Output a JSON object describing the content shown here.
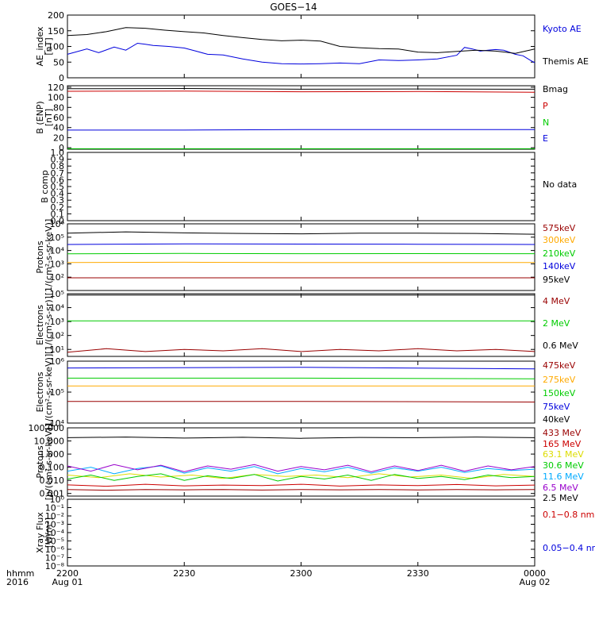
{
  "title": "GOES−14",
  "colors": {
    "black": "#000000",
    "blue": "#0000dd",
    "red": "#cc0000",
    "green": "#00cc00",
    "orange": "#ffaa00",
    "yellow": "#dddd00",
    "cyan": "#00aaff",
    "purple": "#9900cc",
    "maroon": "#990000"
  },
  "time_axis": {
    "corner_labels": [
      "hhmm",
      "2016"
    ],
    "ticks": [
      {
        "hhmm": "2200",
        "date": "Aug 01",
        "minute": 0
      },
      {
        "hhmm": "2230",
        "date": "",
        "minute": 30
      },
      {
        "hhmm": "2300",
        "date": "",
        "minute": 60
      },
      {
        "hhmm": "2330",
        "date": "",
        "minute": 90
      },
      {
        "hhmm": "0000",
        "date": "Aug 02",
        "minute": 120
      }
    ],
    "range_minutes": [
      0,
      120
    ]
  },
  "chart_data": [
    {
      "type": "line",
      "id": "ae",
      "ylabel": [
        "AE_index",
        "[nT]"
      ],
      "yscale": "linear",
      "ylim": [
        0,
        200
      ],
      "ticks": [
        {
          "v": 0,
          "l": "0"
        },
        {
          "v": 50,
          "l": "50"
        },
        {
          "v": 100,
          "l": "100"
        },
        {
          "v": 150,
          "l": "150"
        },
        {
          "v": 200,
          "l": "200"
        }
      ],
      "series": [
        {
          "name": "Kyoto AE",
          "color": "#0000dd",
          "x": [
            0,
            5,
            8,
            12,
            15,
            18,
            20,
            22,
            26,
            30,
            33,
            36,
            40,
            45,
            50,
            55,
            60,
            65,
            70,
            75,
            80,
            85,
            90,
            95,
            100,
            102,
            104,
            106,
            108,
            110,
            112,
            115,
            117,
            119,
            120
          ],
          "y": [
            75,
            92,
            80,
            98,
            88,
            110,
            107,
            103,
            100,
            95,
            85,
            75,
            73,
            60,
            50,
            45,
            44,
            45,
            47,
            45,
            57,
            55,
            57,
            60,
            72,
            97,
            92,
            85,
            88,
            90,
            88,
            75,
            70,
            55,
            48
          ]
        },
        {
          "name": "Themis AE",
          "color": "#000000",
          "x": [
            0,
            5,
            10,
            15,
            20,
            25,
            30,
            35,
            40,
            45,
            50,
            55,
            60,
            65,
            70,
            75,
            80,
            85,
            90,
            95,
            100,
            105,
            110,
            115,
            120
          ],
          "y": [
            135,
            138,
            147,
            160,
            158,
            152,
            147,
            143,
            135,
            128,
            122,
            118,
            120,
            117,
            100,
            96,
            93,
            92,
            82,
            80,
            84,
            88,
            85,
            78,
            92
          ]
        }
      ]
    },
    {
      "type": "line",
      "id": "b_enp",
      "ylabel": [
        "B (ENP)",
        "[nT]"
      ],
      "yscale": "linear",
      "ylim": [
        -3,
        123
      ],
      "ticks": [
        {
          "v": 0,
          "l": "0"
        },
        {
          "v": 20,
          "l": "20"
        },
        {
          "v": 40,
          "l": "40"
        },
        {
          "v": 60,
          "l": "60"
        },
        {
          "v": 80,
          "l": "80"
        },
        {
          "v": 100,
          "l": "100"
        },
        {
          "v": 120,
          "l": "120"
        }
      ],
      "series": [
        {
          "name": "Bmag",
          "color": "#000000",
          "x": [
            0,
            30,
            60,
            90,
            120
          ],
          "y": [
            117,
            117.5,
            116,
            116.5,
            116
          ]
        },
        {
          "name": "P",
          "color": "#cc0000",
          "x": [
            0,
            30,
            60,
            90,
            120
          ],
          "y": [
            112,
            112.5,
            111,
            111.5,
            110
          ]
        },
        {
          "name": "N",
          "color": "#00cc00",
          "x": [
            0,
            30,
            60,
            90,
            120
          ],
          "y": [
            -2,
            -2,
            -2,
            -2,
            -2
          ]
        },
        {
          "name": "E",
          "color": "#0000dd",
          "x": [
            0,
            30,
            60,
            90,
            120
          ],
          "y": [
            35,
            35,
            36,
            36,
            36
          ]
        }
      ]
    },
    {
      "type": "line",
      "id": "b_comp",
      "ylabel": [
        "B comp"
      ],
      "yscale": "linear",
      "ylim": [
        0,
        1
      ],
      "ticks": [
        {
          "v": 0,
          "l": "0.0"
        },
        {
          "v": 0.1,
          "l": "0.1"
        },
        {
          "v": 0.2,
          "l": "0.2"
        },
        {
          "v": 0.3,
          "l": "0.3"
        },
        {
          "v": 0.4,
          "l": "0.4"
        },
        {
          "v": 0.5,
          "l": "0.5"
        },
        {
          "v": 0.6,
          "l": "0.6"
        },
        {
          "v": 0.7,
          "l": "0.7"
        },
        {
          "v": 0.8,
          "l": "0.8"
        },
        {
          "v": 0.9,
          "l": "0.9"
        },
        {
          "v": 1,
          "l": "1.0"
        }
      ],
      "series": [
        {
          "name": "No data",
          "color": "#000000",
          "x": [],
          "y": []
        }
      ]
    },
    {
      "type": "line",
      "id": "protons_mag",
      "ylabel": [
        "Protons",
        "[1/(cm²-s-sr-keV)]"
      ],
      "yscale": "log",
      "ylim": [
        1,
        6
      ],
      "ticks": [
        {
          "v": 2,
          "l": "10²"
        },
        {
          "v": 3,
          "l": "10³"
        },
        {
          "v": 4,
          "l": "10⁴"
        },
        {
          "v": 5,
          "l": "10⁵"
        },
        {
          "v": 6,
          "l": "10⁶"
        }
      ],
      "series": [
        {
          "name": "575keV",
          "color": "#990000",
          "x": [
            0,
            30,
            60,
            90,
            120
          ],
          "y": [
            1.95,
            1.95,
            1.95,
            1.95,
            1.95
          ]
        },
        {
          "name": "300keV",
          "color": "#ffaa00",
          "x": [
            0,
            30,
            60,
            90,
            120
          ],
          "y": [
            3.1,
            3.12,
            3.1,
            3.1,
            3.1
          ]
        },
        {
          "name": "210keV",
          "color": "#00cc00",
          "x": [
            0,
            30,
            60,
            90,
            120
          ],
          "y": [
            3.75,
            3.78,
            3.76,
            3.77,
            3.76
          ]
        },
        {
          "name": "140keV",
          "color": "#0000dd",
          "x": [
            0,
            30,
            60,
            90,
            120
          ],
          "y": [
            4.45,
            4.5,
            4.48,
            4.47,
            4.45
          ]
        },
        {
          "name": "95keV",
          "color": "#000000",
          "x": [
            0,
            15,
            30,
            45,
            60,
            75,
            90,
            105,
            120
          ],
          "y": [
            5.3,
            5.4,
            5.32,
            5.28,
            5.25,
            5.3,
            5.3,
            5.28,
            5.22
          ]
        }
      ]
    },
    {
      "type": "line",
      "id": "electrons_mag",
      "ylabel": [
        "Electrons",
        "[1/(cm²-s-sr)]"
      ],
      "yscale": "log",
      "ylim": [
        0.5,
        5
      ],
      "ticks": [
        {
          "v": 1,
          "l": "10¹"
        },
        {
          "v": 2,
          "l": "10²"
        },
        {
          "v": 3,
          "l": "10³"
        },
        {
          "v": 4,
          "l": "10⁴"
        },
        {
          "v": 5,
          "l": "10⁵"
        }
      ],
      "series": [
        {
          "name": "4 MeV",
          "color": "#990000",
          "x": [
            0,
            10,
            20,
            30,
            40,
            50,
            60,
            70,
            80,
            90,
            100,
            110,
            120
          ],
          "y": [
            0.8,
            1.05,
            0.85,
            1.0,
            0.9,
            1.05,
            0.85,
            1.0,
            0.9,
            1.05,
            0.9,
            1.0,
            0.85
          ]
        },
        {
          "name": "2 MeV",
          "color": "#00cc00",
          "x": [
            0,
            30,
            60,
            90,
            120
          ],
          "y": [
            3.05,
            3.05,
            3.05,
            3.05,
            3.05
          ]
        },
        {
          "name": "0.6 MeV",
          "color": "#000000",
          "x": [
            0,
            30,
            60,
            90,
            120
          ],
          "y": [
            4.9,
            4.9,
            4.9,
            4.9,
            4.9
          ]
        }
      ]
    },
    {
      "type": "line",
      "id": "electrons_maged",
      "ylabel": [
        "Electrons",
        "[1/(cm²-s-sr-keV)]"
      ],
      "yscale": "log",
      "ylim": [
        4,
        6
      ],
      "ticks": [
        {
          "v": 4,
          "l": "10⁴"
        },
        {
          "v": 5,
          "l": "10⁵"
        },
        {
          "v": 6,
          "l": "10⁶"
        }
      ],
      "series": [
        {
          "name": "475keV",
          "color": "#990000",
          "x": [
            0,
            60,
            120
          ],
          "y": [
            4.7,
            4.7,
            4.68
          ]
        },
        {
          "name": "275keV",
          "color": "#ffaa00",
          "x": [
            0,
            60,
            120
          ],
          "y": [
            5.2,
            5.2,
            5.2
          ]
        },
        {
          "name": "150keV",
          "color": "#00cc00",
          "x": [
            0,
            60,
            120
          ],
          "y": [
            5.45,
            5.45,
            5.43
          ]
        },
        {
          "name": "75keV",
          "color": "#0000dd",
          "x": [
            0,
            60,
            120
          ],
          "y": [
            5.78,
            5.8,
            5.75
          ]
        },
        {
          "name": "40keV",
          "color": "#000000",
          "x": [
            0,
            60,
            120
          ],
          "y": [
            6.0,
            6.0,
            6.0
          ]
        }
      ]
    },
    {
      "type": "line",
      "id": "protons_hepad",
      "ylabel": [
        "Protons",
        "[p/(cm²-s-sr-keV)]"
      ],
      "yscale": "log",
      "ylim": [
        -3.2,
        2
      ],
      "ticks": [
        {
          "v": -3,
          "l": "0.001"
        },
        {
          "v": -2,
          "l": "0.010"
        },
        {
          "v": -1,
          "l": "0.100"
        },
        {
          "v": 0,
          "l": "1.000"
        },
        {
          "v": 1,
          "l": "10.000"
        },
        {
          "v": 2,
          "l": "100.000"
        }
      ],
      "series": [
        {
          "name": "433 MeV",
          "color": "#990000",
          "x": [
            0,
            10,
            20,
            30,
            40,
            50,
            60,
            70,
            80,
            90,
            100,
            110,
            120
          ],
          "y": [
            -2.7,
            -2.75,
            -2.7,
            -2.72,
            -2.7,
            -2.74,
            -2.7,
            -2.72,
            -2.7,
            -2.73,
            -2.7,
            -2.72,
            -2.7
          ]
        },
        {
          "name": "165 MeV",
          "color": "#cc0000",
          "x": [
            0,
            10,
            20,
            30,
            40,
            50,
            60,
            70,
            80,
            90,
            100,
            110,
            120
          ],
          "y": [
            -2.35,
            -2.45,
            -2.3,
            -2.42,
            -2.36,
            -2.4,
            -2.3,
            -2.44,
            -2.35,
            -2.4,
            -2.32,
            -2.42,
            -2.36
          ]
        },
        {
          "name": "63.1 MeV",
          "color": "#dddd00",
          "x": [
            0,
            8,
            16,
            24,
            32,
            40,
            48,
            56,
            64,
            72,
            80,
            88,
            96,
            104,
            112,
            120
          ],
          "y": [
            -1.6,
            -1.8,
            -1.5,
            -1.75,
            -1.6,
            -1.85,
            -1.55,
            -1.7,
            -1.6,
            -1.8,
            -1.5,
            -1.75,
            -1.6,
            -1.85,
            -1.55,
            -1.7
          ]
        },
        {
          "name": "30.6 MeV",
          "color": "#00cc00",
          "x": [
            0,
            6,
            12,
            18,
            24,
            30,
            36,
            42,
            48,
            54,
            60,
            66,
            72,
            78,
            84,
            90,
            96,
            102,
            108,
            114,
            120
          ],
          "y": [
            -1.9,
            -1.6,
            -2.0,
            -1.7,
            -1.5,
            -2.0,
            -1.65,
            -1.85,
            -1.55,
            -2.05,
            -1.7,
            -1.9,
            -1.6,
            -2.0,
            -1.55,
            -1.85,
            -1.7,
            -1.95,
            -1.6,
            -1.8,
            -1.7
          ]
        },
        {
          "name": "11.6 MeV",
          "color": "#00aaff",
          "x": [
            0,
            6,
            12,
            18,
            24,
            30,
            36,
            42,
            48,
            54,
            60,
            66,
            72,
            78,
            84,
            90,
            96,
            102,
            108,
            114,
            120
          ],
          "y": [
            -1.3,
            -1.0,
            -1.5,
            -1.1,
            -0.9,
            -1.45,
            -1.05,
            -1.3,
            -0.95,
            -1.5,
            -1.1,
            -1.35,
            -1.0,
            -1.45,
            -1.05,
            -1.3,
            -1.0,
            -1.4,
            -1.1,
            -1.25,
            -1.15
          ]
        },
        {
          "name": "6.5 MeV",
          "color": "#9900cc",
          "x": [
            0,
            6,
            12,
            18,
            24,
            30,
            36,
            42,
            48,
            54,
            60,
            66,
            72,
            78,
            84,
            90,
            96,
            102,
            108,
            114,
            120
          ],
          "y": [
            -0.9,
            -1.3,
            -0.8,
            -1.2,
            -0.85,
            -1.35,
            -0.9,
            -1.15,
            -0.8,
            -1.3,
            -0.95,
            -1.2,
            -0.85,
            -1.35,
            -0.9,
            -1.25,
            -0.85,
            -1.3,
            -0.9,
            -1.2,
            -0.95
          ]
        },
        {
          "name": "2.5 MeV",
          "color": "#000000",
          "x": [
            0,
            15,
            30,
            45,
            60,
            75,
            90,
            105,
            120
          ],
          "y": [
            1.25,
            1.3,
            1.22,
            1.28,
            1.2,
            1.27,
            1.25,
            1.3,
            1.25
          ]
        }
      ]
    },
    {
      "type": "line",
      "id": "xray",
      "ylabel": [
        "Xray Flux",
        "[W/m²]"
      ],
      "yscale": "log",
      "ylim": [
        -8,
        0
      ],
      "ticks": [
        {
          "v": -8,
          "l": "10⁻⁸"
        },
        {
          "v": -7,
          "l": "10⁻⁷"
        },
        {
          "v": -6,
          "l": "10⁻⁶"
        },
        {
          "v": -5,
          "l": "10⁻⁵"
        },
        {
          "v": -4,
          "l": "10⁻⁴"
        },
        {
          "v": -3,
          "l": "10⁻³"
        },
        {
          "v": -2,
          "l": "10⁻²"
        },
        {
          "v": -1,
          "l": "10⁻¹"
        },
        {
          "v": 0,
          "l": "10⁰"
        }
      ],
      "series": [
        {
          "name": "0.1−0.8 nm",
          "color": "#cc0000",
          "x": [],
          "y": []
        },
        {
          "name": "0.05−0.4 nm",
          "color": "#0000dd",
          "x": [],
          "y": []
        }
      ]
    }
  ]
}
